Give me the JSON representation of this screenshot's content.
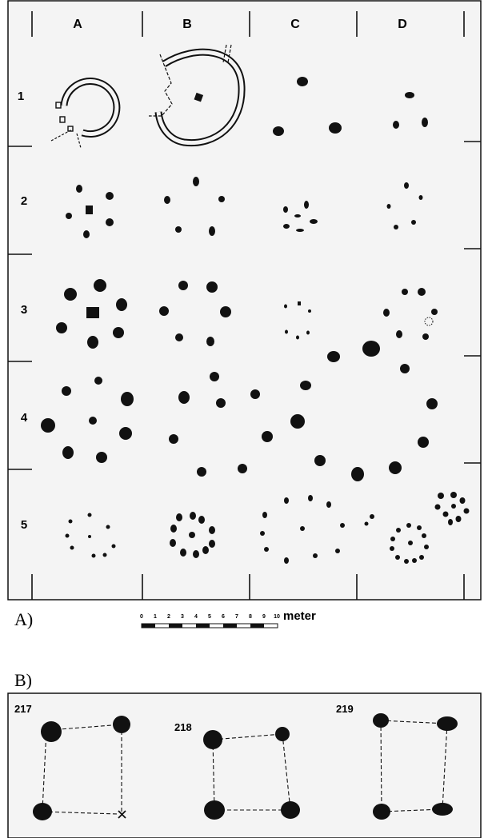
{
  "panel_a": {
    "label": "A)",
    "columns": [
      "A",
      "B",
      "C",
      "D"
    ],
    "rows": [
      "1",
      "2",
      "3",
      "4",
      "5"
    ],
    "scale": {
      "ticks": [
        "0",
        "1",
        "2",
        "3",
        "4",
        "5",
        "6",
        "7",
        "8",
        "9",
        "10"
      ],
      "unit": "meter"
    }
  },
  "panel_b": {
    "label": "B)",
    "plans": [
      {
        "number": "217"
      },
      {
        "number": "218"
      },
      {
        "number": "219"
      }
    ]
  }
}
